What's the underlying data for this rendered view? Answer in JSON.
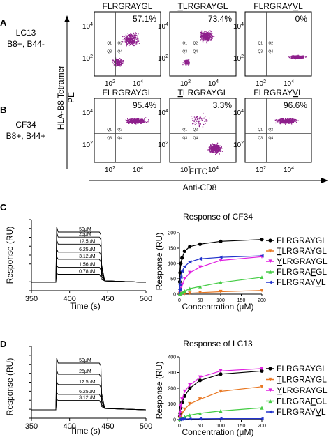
{
  "panel_labels": {
    "a": "A",
    "b": "B",
    "c": "C",
    "d": "D"
  },
  "flow": {
    "y_axis": {
      "marker": "PE",
      "label": "HLA-B8 Tetramer"
    },
    "x_axis": {
      "marker": "FITC",
      "label": "Anti-CD8"
    },
    "tick_labels": {
      "low": "10",
      "high": "10",
      "exp_low": "2",
      "exp_high": "4"
    },
    "gate_labels": [
      "Q1",
      "Q2",
      "Q3",
      "Q4"
    ],
    "rows": [
      {
        "name": "LC13",
        "hla": "B8+, B44-"
      },
      {
        "name": "CF34",
        "hla": "B8+, B44+"
      }
    ],
    "columns": [
      {
        "peptide": "FLRGRAYGL",
        "underlined_index": -1
      },
      {
        "peptide": "TLRGRAYGL",
        "underlined_index": 0
      },
      {
        "peptide": "FLRGRAYVL",
        "underlined_index": 7
      }
    ],
    "percentages": [
      [
        "57.1%",
        "73.4%",
        "0%"
      ],
      [
        "95.4%",
        "3.3%",
        "96.6%"
      ]
    ],
    "density_color": "#8e1f8c"
  },
  "chart_data": [
    {
      "id": "spr_cf34",
      "type": "line",
      "title": "",
      "xlabel": "Time (s)",
      "ylabel": "Response (RU)",
      "xlim": [
        350,
        500
      ],
      "xticks": [
        350,
        400,
        450,
        500
      ],
      "yticks_labeled": false,
      "injection_window": [
        383,
        441
      ],
      "series": [
        {
          "name": "50μM",
          "plateau": 1.0
        },
        {
          "name": "25μM",
          "plateau": 0.9
        },
        {
          "name": "12.5μM",
          "plateau": 0.76
        },
        {
          "name": "6.25μM",
          "plateau": 0.6
        },
        {
          "name": "3.12μM",
          "plateau": 0.46
        },
        {
          "name": "1.56μM",
          "plateau": 0.3
        },
        {
          "name": "0.78μM",
          "plateau": 0.16
        }
      ]
    },
    {
      "id": "binding_cf34",
      "type": "line",
      "title": "Response of CF34",
      "xlabel": "Concentration (μM)",
      "ylabel": "Response (RU)",
      "xlim": [
        0,
        200
      ],
      "ylim": [
        0,
        200
      ],
      "xticks": [
        0,
        50,
        100,
        150,
        200
      ],
      "yticks": [
        0,
        50,
        100,
        150,
        200
      ],
      "x": [
        0,
        0.78,
        1.56,
        3.12,
        6.25,
        12.5,
        25,
        50,
        100,
        200
      ],
      "series": [
        {
          "name": "FLRGRAYGL",
          "underline": -1,
          "color": "#000000",
          "marker": "circle",
          "values": [
            0,
            40,
            70,
            100,
            118,
            140,
            155,
            163,
            172,
            178
          ]
        },
        {
          "name": "TLRGRAYGL",
          "underline": 0,
          "color": "#e87722",
          "marker": "triangle-down",
          "values": [
            0,
            0,
            1,
            1,
            2,
            2,
            3,
            5,
            8,
            12
          ]
        },
        {
          "name": "YLRGRAYGL",
          "underline": 0,
          "color": "#e020e0",
          "marker": "triangle-down",
          "values": [
            0,
            5,
            10,
            18,
            30,
            50,
            70,
            88,
            110,
            122
          ]
        },
        {
          "name": "FLRGRAFGL",
          "underline": 6,
          "color": "#44cc44",
          "marker": "triangle-up",
          "values": [
            0,
            1,
            2,
            3,
            6,
            10,
            18,
            25,
            38,
            55
          ]
        },
        {
          "name": "FLRGRAYVL",
          "underline": 7,
          "color": "#2233cc",
          "marker": "triangle-left",
          "values": [
            0,
            15,
            30,
            55,
            75,
            90,
            105,
            115,
            120,
            125
          ]
        }
      ]
    },
    {
      "id": "spr_lc13",
      "type": "line",
      "title": "",
      "xlabel": "Time (s)",
      "ylabel": "Response (RU)",
      "xlim": [
        350,
        500
      ],
      "xticks": [
        350,
        400,
        450,
        500
      ],
      "yticks_labeled": false,
      "injection_window": [
        383,
        441
      ],
      "series": [
        {
          "name": "50μM",
          "plateau": 1.0
        },
        {
          "name": "25μM",
          "plateau": 0.76
        },
        {
          "name": "12.5μM",
          "plateau": 0.54
        },
        {
          "name": "6.25μM",
          "plateau": 0.33
        },
        {
          "name": "3.12μM",
          "plateau": 0.2
        }
      ]
    },
    {
      "id": "binding_lc13",
      "type": "line",
      "title": "Response of LC13",
      "xlabel": "Concentration (μM)",
      "ylabel": "Response (RU)",
      "xlim": [
        0,
        200
      ],
      "ylim": [
        0,
        400
      ],
      "xticks": [
        0,
        50,
        100,
        150,
        200
      ],
      "yticks": [
        0,
        100,
        200,
        300,
        400
      ],
      "x": [
        0,
        0.78,
        1.56,
        3.12,
        6.25,
        12.5,
        25,
        50,
        100,
        200
      ],
      "series": [
        {
          "name": "FLRGRAYGL",
          "underline": -1,
          "color": "#000000",
          "marker": "circle",
          "values": [
            0,
            20,
            40,
            75,
            110,
            150,
            200,
            250,
            290,
            310
          ]
        },
        {
          "name": "TLRGRAYGL",
          "underline": 0,
          "color": "#e87722",
          "marker": "triangle-down",
          "values": [
            0,
            5,
            10,
            20,
            40,
            65,
            100,
            130,
            180,
            210
          ]
        },
        {
          "name": "YLRGRAYGL",
          "underline": 0,
          "color": "#e020e0",
          "marker": "triangle-down",
          "values": [
            0,
            20,
            45,
            85,
            130,
            180,
            220,
            270,
            310,
            325
          ]
        },
        {
          "name": "FLRGRAFGL",
          "underline": 6,
          "color": "#44cc44",
          "marker": "triangle-up",
          "values": [
            0,
            2,
            4,
            8,
            12,
            18,
            28,
            40,
            55,
            75
          ]
        },
        {
          "name": "FLRGRAYVL",
          "underline": 7,
          "color": "#2233cc",
          "marker": "triangle-left",
          "values": [
            0,
            1,
            2,
            3,
            3,
            4,
            5,
            5,
            6,
            6
          ]
        }
      ]
    }
  ]
}
